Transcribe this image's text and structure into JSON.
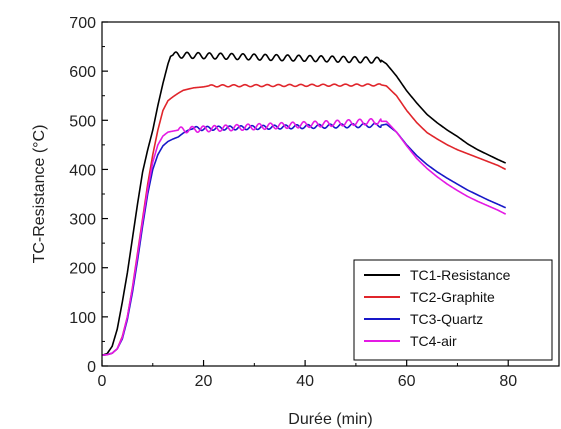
{
  "chart_data": {
    "type": "line",
    "title": "",
    "xlabel": "Durée (min)",
    "ylabel": "TC-Resistance (°C)",
    "xlim": [
      0,
      90
    ],
    "ylim": [
      0,
      700
    ],
    "xticks": [
      0,
      20,
      40,
      60,
      80
    ],
    "yticks": [
      0,
      100,
      200,
      300,
      400,
      500,
      600,
      700
    ],
    "grid": false,
    "legend_position": "bottom-right",
    "series": [
      {
        "name": "TC1-Resistance",
        "color": "#000000",
        "oscillation": {
          "from": 14,
          "to": 55,
          "amplitude": 6,
          "period": 2.2,
          "center": 621
        },
        "points": [
          [
            0,
            22
          ],
          [
            1,
            25
          ],
          [
            2,
            40
          ],
          [
            3,
            75
          ],
          [
            4,
            130
          ],
          [
            5,
            190
          ],
          [
            6,
            260
          ],
          [
            7,
            330
          ],
          [
            8,
            395
          ],
          [
            9,
            440
          ],
          [
            10,
            480
          ],
          [
            11,
            530
          ],
          [
            12,
            575
          ],
          [
            13,
            615
          ],
          [
            13.5,
            630
          ],
          [
            14,
            633
          ],
          [
            55,
            622
          ],
          [
            56,
            615
          ],
          [
            58,
            590
          ],
          [
            60,
            560
          ],
          [
            62,
            535
          ],
          [
            64,
            512
          ],
          [
            66,
            495
          ],
          [
            68,
            480
          ],
          [
            70,
            467
          ],
          [
            72,
            452
          ],
          [
            74,
            440
          ],
          [
            76,
            430
          ],
          [
            78,
            420
          ],
          [
            79.5,
            413
          ]
        ]
      },
      {
        "name": "TC2-Graphite",
        "color": "#e0252b",
        "oscillation": {
          "from": 21,
          "to": 55,
          "amplitude": 2,
          "period": 2.2,
          "center": 570
        },
        "points": [
          [
            0,
            22
          ],
          [
            1,
            23
          ],
          [
            2,
            26
          ],
          [
            3,
            35
          ],
          [
            4,
            60
          ],
          [
            5,
            100
          ],
          [
            6,
            160
          ],
          [
            7,
            230
          ],
          [
            8,
            300
          ],
          [
            9,
            370
          ],
          [
            10,
            430
          ],
          [
            11,
            480
          ],
          [
            12,
            520
          ],
          [
            13,
            540
          ],
          [
            14,
            548
          ],
          [
            15,
            555
          ],
          [
            16,
            561
          ],
          [
            18,
            566
          ],
          [
            20,
            568
          ],
          [
            21,
            570
          ],
          [
            55,
            572
          ],
          [
            56,
            570
          ],
          [
            58,
            550
          ],
          [
            60,
            520
          ],
          [
            62,
            495
          ],
          [
            64,
            475
          ],
          [
            66,
            462
          ],
          [
            68,
            450
          ],
          [
            70,
            440
          ],
          [
            72,
            432
          ],
          [
            74,
            424
          ],
          [
            76,
            416
          ],
          [
            78,
            408
          ],
          [
            79.5,
            400
          ]
        ]
      },
      {
        "name": "TC3-Quartz",
        "color": "#1818c8",
        "oscillation": {
          "from": 18,
          "to": 55,
          "amplitude": 4,
          "period": 2.2,
          "center": 486
        },
        "points": [
          [
            0,
            22
          ],
          [
            1,
            23
          ],
          [
            2,
            26
          ],
          [
            3,
            35
          ],
          [
            4,
            55
          ],
          [
            5,
            95
          ],
          [
            6,
            150
          ],
          [
            7,
            215
          ],
          [
            8,
            285
          ],
          [
            9,
            350
          ],
          [
            10,
            400
          ],
          [
            11,
            430
          ],
          [
            12,
            448
          ],
          [
            13,
            457
          ],
          [
            14,
            462
          ],
          [
            15,
            466
          ],
          [
            16,
            474
          ],
          [
            17,
            480
          ],
          [
            18,
            483
          ],
          [
            55,
            490
          ],
          [
            56,
            492
          ],
          [
            58,
            476
          ],
          [
            60,
            450
          ],
          [
            62,
            428
          ],
          [
            64,
            410
          ],
          [
            66,
            395
          ],
          [
            68,
            382
          ],
          [
            70,
            370
          ],
          [
            72,
            358
          ],
          [
            74,
            348
          ],
          [
            76,
            338
          ],
          [
            78,
            329
          ],
          [
            79.5,
            322
          ]
        ]
      },
      {
        "name": "TC4-air",
        "color": "#e41ae4",
        "oscillation": {
          "from": 15,
          "to": 55,
          "amplitude": 6,
          "period": 2.2,
          "center": 496
        },
        "points": [
          [
            0,
            22
          ],
          [
            1,
            23
          ],
          [
            2,
            26
          ],
          [
            3,
            35
          ],
          [
            4,
            58
          ],
          [
            5,
            100
          ],
          [
            6,
            158
          ],
          [
            7,
            225
          ],
          [
            8,
            295
          ],
          [
            9,
            360
          ],
          [
            10,
            415
          ],
          [
            11,
            450
          ],
          [
            12,
            468
          ],
          [
            13,
            476
          ],
          [
            14,
            478
          ],
          [
            15,
            480
          ],
          [
            55,
            498
          ],
          [
            56,
            498
          ],
          [
            58,
            476
          ],
          [
            60,
            448
          ],
          [
            62,
            422
          ],
          [
            64,
            402
          ],
          [
            66,
            385
          ],
          [
            68,
            370
          ],
          [
            70,
            357
          ],
          [
            72,
            345
          ],
          [
            74,
            335
          ],
          [
            76,
            326
          ],
          [
            78,
            317
          ],
          [
            79.5,
            309
          ]
        ]
      }
    ]
  }
}
